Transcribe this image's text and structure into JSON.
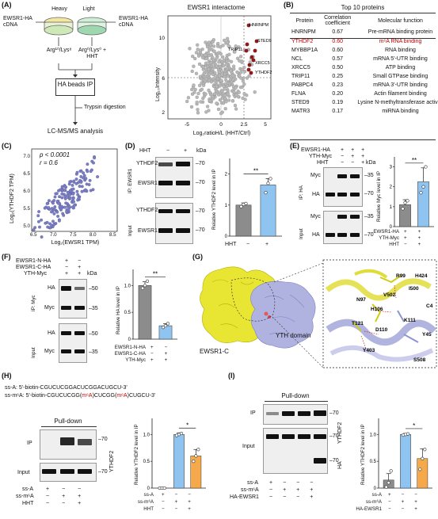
{
  "panels": {
    "A": "(A)",
    "B": "(B)",
    "C": "(C)",
    "D": "(D)",
    "E": "(E)",
    "F": "(F)",
    "G": "(G)",
    "H": "(H)",
    "I": "(I)"
  },
  "panelA": {
    "heavy": "Heavy",
    "light": "Light",
    "tube_left": "EWSR1-HA cDNA",
    "tube_right": "EWSR1-HA cDNA",
    "label_left": "Arg¹⁰/Lys⁸",
    "label_right": "Arg⁰/Lys⁰ + HHT",
    "step1": "HA beads IP",
    "step2": "Trypsin digestion",
    "step3": "LC-MS/MS analysis"
  },
  "volcano": {
    "title": "EWSR1 interactome",
    "ylabel": "Log₁₀Intensity",
    "xlabel": "Log₂ratioH/L (HHT/Ctrl)",
    "labels": [
      "HNRNPM",
      "STED9",
      "TRIP11",
      "XRCC5",
      "YTHDF2"
    ]
  },
  "panelB": {
    "title": "Top 10 proteins",
    "headers": [
      "Protein",
      "Correlation coefficient",
      "Molecular function"
    ],
    "rows": [
      [
        "HNRNPM",
        "0.67",
        "Pre-mRNA binding protein"
      ],
      [
        "YTHDF2",
        "0.60",
        "m⁶A RNA binding"
      ],
      [
        "MYBBP1A",
        "0.60",
        "RNA binding"
      ],
      [
        "NCL",
        "0.57",
        "mRNA 5'-UTR binding"
      ],
      [
        "XRCC5",
        "0.50",
        "ATP binding"
      ],
      [
        "TRIP11",
        "0.25",
        "Small GTPase binding"
      ],
      [
        "PABPC4",
        "0.23",
        "mRNA 3'-UTR binding"
      ],
      [
        "FLNA",
        "0.20",
        "Actin filament binding"
      ],
      [
        "STED9",
        "0.19",
        "Lysine N-methyltransferase activity"
      ],
      [
        "MATR3",
        "0.17",
        "miRNA binding"
      ]
    ],
    "highlight_color": "#c00000"
  },
  "panelC": {
    "p": "p < 0.0001",
    "r": "r = 0.6",
    "ylabel": "Log₂(YTHDF2 TPM)",
    "xlabel": "Log₂(EWSR1 TPM)",
    "xticks": [
      "6.5",
      "7.0",
      "7.5",
      "8.0",
      "8.5"
    ],
    "yticks": [
      "5.0",
      "5.5",
      "6.0",
      "6.5",
      "7.0"
    ]
  },
  "panelD": {
    "hht": "HHT",
    "kda": "kDa",
    "ip": "IP: EWSR1",
    "input": "Input",
    "bands": [
      "YTHDF2",
      "EWSR1",
      "YTHDF2",
      "EWSR1"
    ],
    "mw": [
      "70",
      "70",
      "70",
      "70"
    ],
    "ylabel": "Relative YTHDF2 level in IP",
    "sig": "**",
    "xlab": "HHT"
  },
  "panelE": {
    "rows": [
      "EWSR1-HA",
      "YTH-Myc",
      "HHT"
    ],
    "kda": "kDa",
    "ip": "IP: HA",
    "input": "Input",
    "bands": [
      "Myc",
      "HA",
      "Myc",
      "HA"
    ],
    "mw": [
      "35",
      "70",
      "35",
      "70"
    ],
    "ylabel": "Relative Myc level in IP",
    "sig": "**"
  },
  "panelF": {
    "rows": [
      "EWSR1-N-HA",
      "EWSR1-C-HA",
      "YTH-Myc"
    ],
    "kda": "kDa",
    "ip": "IP: Myc",
    "input": "Input",
    "bands": [
      "HA",
      "Myc",
      "HA",
      "Myc"
    ],
    "mw": [
      "50",
      "35",
      "50",
      "35"
    ],
    "ylabel": "Relative HA level in IP",
    "sig": "**"
  },
  "panelG": {
    "left_label": "EWSR1-C",
    "right_label": "YTH domain",
    "residues": [
      "R99",
      "H424",
      "I500",
      "V502",
      "N97",
      "C4",
      "H106",
      "K111",
      "T121",
      "D110",
      "Y45",
      "Y403",
      "S508"
    ]
  },
  "panelH": {
    "ssA": "ss-A: 5'-biotin-CGUCUCGGACUCGGACUGCU-3'",
    "ssm6A_pre": "ss-m⁶A: 5'-biotin-CGUCUCGG(",
    "ssm6A_m1": "m⁶A",
    "ssm6A_mid": ")CUCGG(",
    "ssm6A_m2": "m⁶A",
    "ssm6A_post": ")CUGCU-3'",
    "pulldown": "Pull-down",
    "ip": "IP",
    "input": "Input",
    "protein": "YTHDF2",
    "mw": [
      "70",
      "70"
    ],
    "rows": [
      "ss-A",
      "ss-m⁶A",
      "HHT"
    ],
    "ylabel": "Relative YTHDF2 level in IP",
    "sig": "*"
  },
  "panelI": {
    "pulldown": "Pull-down",
    "ip": "IP",
    "input": "Input",
    "protein": "YTHDF2",
    "protein2": "HA",
    "mw": [
      "70",
      "70",
      "70"
    ],
    "rows": [
      "ss-A",
      "ss-m⁶A",
      "HA-EWSR1"
    ],
    "ylabel": "Relative YTHDF2 level in IP",
    "sig": "*"
  },
  "bar_charts": {
    "colors": {
      "grey": "#8c8c8c",
      "blue": "#8fc3f0",
      "orange": "#f5a94a"
    },
    "D": {
      "values": [
        1.0,
        1.65
      ],
      "err": [
        0.07,
        0.2
      ],
      "ylim": [
        0,
        2.5
      ],
      "yticks": [
        "0",
        "1",
        "2"
      ],
      "colors": [
        "grey",
        "blue"
      ],
      "points": [
        [
          0.95,
          1.02,
          1.05
        ],
        [
          1.4,
          1.7,
          1.85
        ]
      ]
    },
    "E": {
      "values": [
        1.1,
        2.25
      ],
      "err": [
        0.25,
        0.7
      ],
      "ylim": [
        0,
        3.5
      ],
      "yticks": [
        "0",
        "1",
        "2",
        "3"
      ],
      "colors": [
        "grey",
        "blue"
      ],
      "points": [
        [
          0.9,
          1.2,
          1.3
        ],
        [
          1.7,
          2.0,
          3.0
        ]
      ]
    },
    "F": {
      "values": [
        1.0,
        0.25
      ],
      "err": [
        0.07,
        0.04
      ],
      "ylim": [
        0,
        1.3
      ],
      "yticks": [
        "0",
        "0.5",
        "1.0"
      ],
      "colors": [
        "grey",
        "blue"
      ],
      "points": [
        [
          0.95,
          1.0,
          1.08
        ],
        [
          0.22,
          0.25,
          0.29
        ]
      ]
    },
    "H": {
      "values": [
        0.0,
        1.0,
        0.6
      ],
      "err": [
        0.0,
        0.03,
        0.12
      ],
      "ylim": [
        0,
        1.3
      ],
      "yticks": [
        "0",
        "0.5",
        "1.0"
      ],
      "colors": [
        "grey",
        "blue",
        "orange"
      ],
      "points": [
        [
          0.0,
          0.0,
          0.0
        ],
        [
          0.98,
          1.0,
          1.02
        ],
        [
          0.5,
          0.6,
          0.72
        ]
      ]
    },
    "I": {
      "values": [
        0.15,
        1.0,
        0.55
      ],
      "err": [
        0.12,
        0.02,
        0.18
      ],
      "ylim": [
        0,
        1.3
      ],
      "yticks": [
        "0",
        "0.5",
        "1.0"
      ],
      "colors": [
        "grey",
        "blue",
        "orange"
      ],
      "points": [
        [
          0.02,
          0.1,
          0.32
        ],
        [
          0.99,
          1.0,
          1.01
        ],
        [
          0.35,
          0.55,
          0.72
        ]
      ]
    }
  }
}
